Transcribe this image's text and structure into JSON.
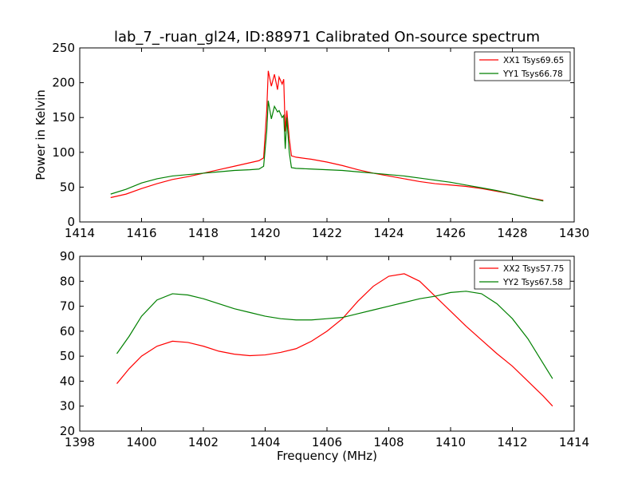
{
  "figure_title": "lab_7_-ruan_gl24, ID:88971 Calibrated On-source spectrum",
  "chart_data": [
    {
      "type": "line",
      "title": "lab_7_-ruan_gl24, ID:88971 Calibrated On-source spectrum",
      "xlabel": "",
      "ylabel": "Power in Kelvin",
      "xlim": [
        1414,
        1430
      ],
      "ylim": [
        0,
        250
      ],
      "xticks": [
        1414,
        1416,
        1418,
        1420,
        1422,
        1424,
        1426,
        1428,
        1430
      ],
      "yticks": [
        0,
        50,
        100,
        150,
        200,
        250
      ],
      "grid": false,
      "legend_position": "top-right",
      "series": [
        {
          "name": "XX1 Tsys69.65",
          "color": "#ff0000",
          "points": [
            [
              1415.0,
              35
            ],
            [
              1415.5,
              40
            ],
            [
              1416.0,
              48
            ],
            [
              1416.5,
              55
            ],
            [
              1417.0,
              61
            ],
            [
              1417.5,
              65
            ],
            [
              1418.0,
              70
            ],
            [
              1418.5,
              75
            ],
            [
              1419.0,
              80
            ],
            [
              1419.5,
              85
            ],
            [
              1419.8,
              88
            ],
            [
              1419.95,
              92
            ],
            [
              1420.05,
              160
            ],
            [
              1420.1,
              217
            ],
            [
              1420.2,
              195
            ],
            [
              1420.3,
              212
            ],
            [
              1420.4,
              190
            ],
            [
              1420.45,
              208
            ],
            [
              1420.55,
              198
            ],
            [
              1420.6,
              205
            ],
            [
              1420.65,
              130
            ],
            [
              1420.7,
              160
            ],
            [
              1420.78,
              120
            ],
            [
              1420.85,
              95
            ],
            [
              1421.0,
              93
            ],
            [
              1421.5,
              90
            ],
            [
              1422.0,
              86
            ],
            [
              1422.5,
              81
            ],
            [
              1423.0,
              75
            ],
            [
              1423.5,
              70
            ],
            [
              1424.0,
              66
            ],
            [
              1424.5,
              62
            ],
            [
              1425.0,
              58
            ],
            [
              1425.5,
              55
            ],
            [
              1426.0,
              53
            ],
            [
              1426.5,
              51
            ],
            [
              1427.0,
              48
            ],
            [
              1427.5,
              44
            ],
            [
              1428.0,
              40
            ],
            [
              1428.5,
              35
            ],
            [
              1429.0,
              31
            ]
          ]
        },
        {
          "name": "YY1 Tsys66.78",
          "color": "#008000",
          "points": [
            [
              1415.0,
              40
            ],
            [
              1415.5,
              47
            ],
            [
              1416.0,
              56
            ],
            [
              1416.5,
              62
            ],
            [
              1417.0,
              66
            ],
            [
              1417.5,
              68
            ],
            [
              1418.0,
              70
            ],
            [
              1418.5,
              72
            ],
            [
              1419.0,
              74
            ],
            [
              1419.5,
              75
            ],
            [
              1419.8,
              76
            ],
            [
              1419.95,
              80
            ],
            [
              1420.05,
              130
            ],
            [
              1420.1,
              174
            ],
            [
              1420.2,
              148
            ],
            [
              1420.3,
              166
            ],
            [
              1420.4,
              158
            ],
            [
              1420.45,
              160
            ],
            [
              1420.55,
              150
            ],
            [
              1420.6,
              153
            ],
            [
              1420.65,
              105
            ],
            [
              1420.7,
              150
            ],
            [
              1420.78,
              100
            ],
            [
              1420.85,
              78
            ],
            [
              1421.0,
              77
            ],
            [
              1421.5,
              76
            ],
            [
              1422.0,
              75
            ],
            [
              1422.5,
              74
            ],
            [
              1423.0,
              72
            ],
            [
              1423.5,
              70
            ],
            [
              1424.0,
              68
            ],
            [
              1424.5,
              66
            ],
            [
              1425.0,
              63
            ],
            [
              1425.5,
              60
            ],
            [
              1426.0,
              57
            ],
            [
              1426.5,
              53
            ],
            [
              1427.0,
              49
            ],
            [
              1427.5,
              45
            ],
            [
              1428.0,
              40
            ],
            [
              1428.5,
              35
            ],
            [
              1429.0,
              30
            ]
          ]
        }
      ]
    },
    {
      "type": "line",
      "title": "",
      "xlabel": "Frequency (MHz)",
      "ylabel": "",
      "xlim": [
        1398,
        1414
      ],
      "ylim": [
        20,
        90
      ],
      "xticks": [
        1398,
        1400,
        1402,
        1404,
        1406,
        1408,
        1410,
        1412,
        1414
      ],
      "yticks": [
        20,
        30,
        40,
        50,
        60,
        70,
        80,
        90
      ],
      "grid": false,
      "legend_position": "top-right",
      "series": [
        {
          "name": "XX2 Tsys57.75",
          "color": "#ff0000",
          "points": [
            [
              1399.2,
              39
            ],
            [
              1399.6,
              45
            ],
            [
              1400.0,
              50
            ],
            [
              1400.5,
              54
            ],
            [
              1401.0,
              56
            ],
            [
              1401.5,
              55.5
            ],
            [
              1402.0,
              54
            ],
            [
              1402.5,
              52
            ],
            [
              1403.0,
              50.8
            ],
            [
              1403.5,
              50.2
            ],
            [
              1404.0,
              50.5
            ],
            [
              1404.5,
              51.5
            ],
            [
              1405.0,
              53
            ],
            [
              1405.5,
              56
            ],
            [
              1406.0,
              60
            ],
            [
              1406.5,
              65
            ],
            [
              1407.0,
              72
            ],
            [
              1407.5,
              78
            ],
            [
              1408.0,
              82
            ],
            [
              1408.5,
              83
            ],
            [
              1409.0,
              80
            ],
            [
              1409.5,
              74
            ],
            [
              1410.0,
              68
            ],
            [
              1410.5,
              62
            ],
            [
              1411.0,
              56.5
            ],
            [
              1411.5,
              51
            ],
            [
              1412.0,
              46
            ],
            [
              1412.5,
              40
            ],
            [
              1413.0,
              34
            ],
            [
              1413.3,
              30
            ]
          ]
        },
        {
          "name": "YY2 Tsys67.58",
          "color": "#008000",
          "points": [
            [
              1399.2,
              51
            ],
            [
              1399.6,
              58
            ],
            [
              1400.0,
              66
            ],
            [
              1400.5,
              72.5
            ],
            [
              1401.0,
              75
            ],
            [
              1401.5,
              74.5
            ],
            [
              1402.0,
              73
            ],
            [
              1402.5,
              71
            ],
            [
              1403.0,
              69
            ],
            [
              1403.5,
              67.5
            ],
            [
              1404.0,
              66
            ],
            [
              1404.5,
              65
            ],
            [
              1405.0,
              64.5
            ],
            [
              1405.5,
              64.5
            ],
            [
              1406.0,
              65
            ],
            [
              1406.5,
              65.5
            ],
            [
              1407.0,
              67
            ],
            [
              1407.5,
              68.5
            ],
            [
              1408.0,
              70
            ],
            [
              1408.5,
              71.5
            ],
            [
              1409.0,
              73
            ],
            [
              1409.5,
              74
            ],
            [
              1410.0,
              75.5
            ],
            [
              1410.5,
              76
            ],
            [
              1411.0,
              75
            ],
            [
              1411.5,
              71
            ],
            [
              1412.0,
              65
            ],
            [
              1412.5,
              57
            ],
            [
              1413.0,
              47
            ],
            [
              1413.3,
              41
            ]
          ]
        }
      ]
    }
  ]
}
